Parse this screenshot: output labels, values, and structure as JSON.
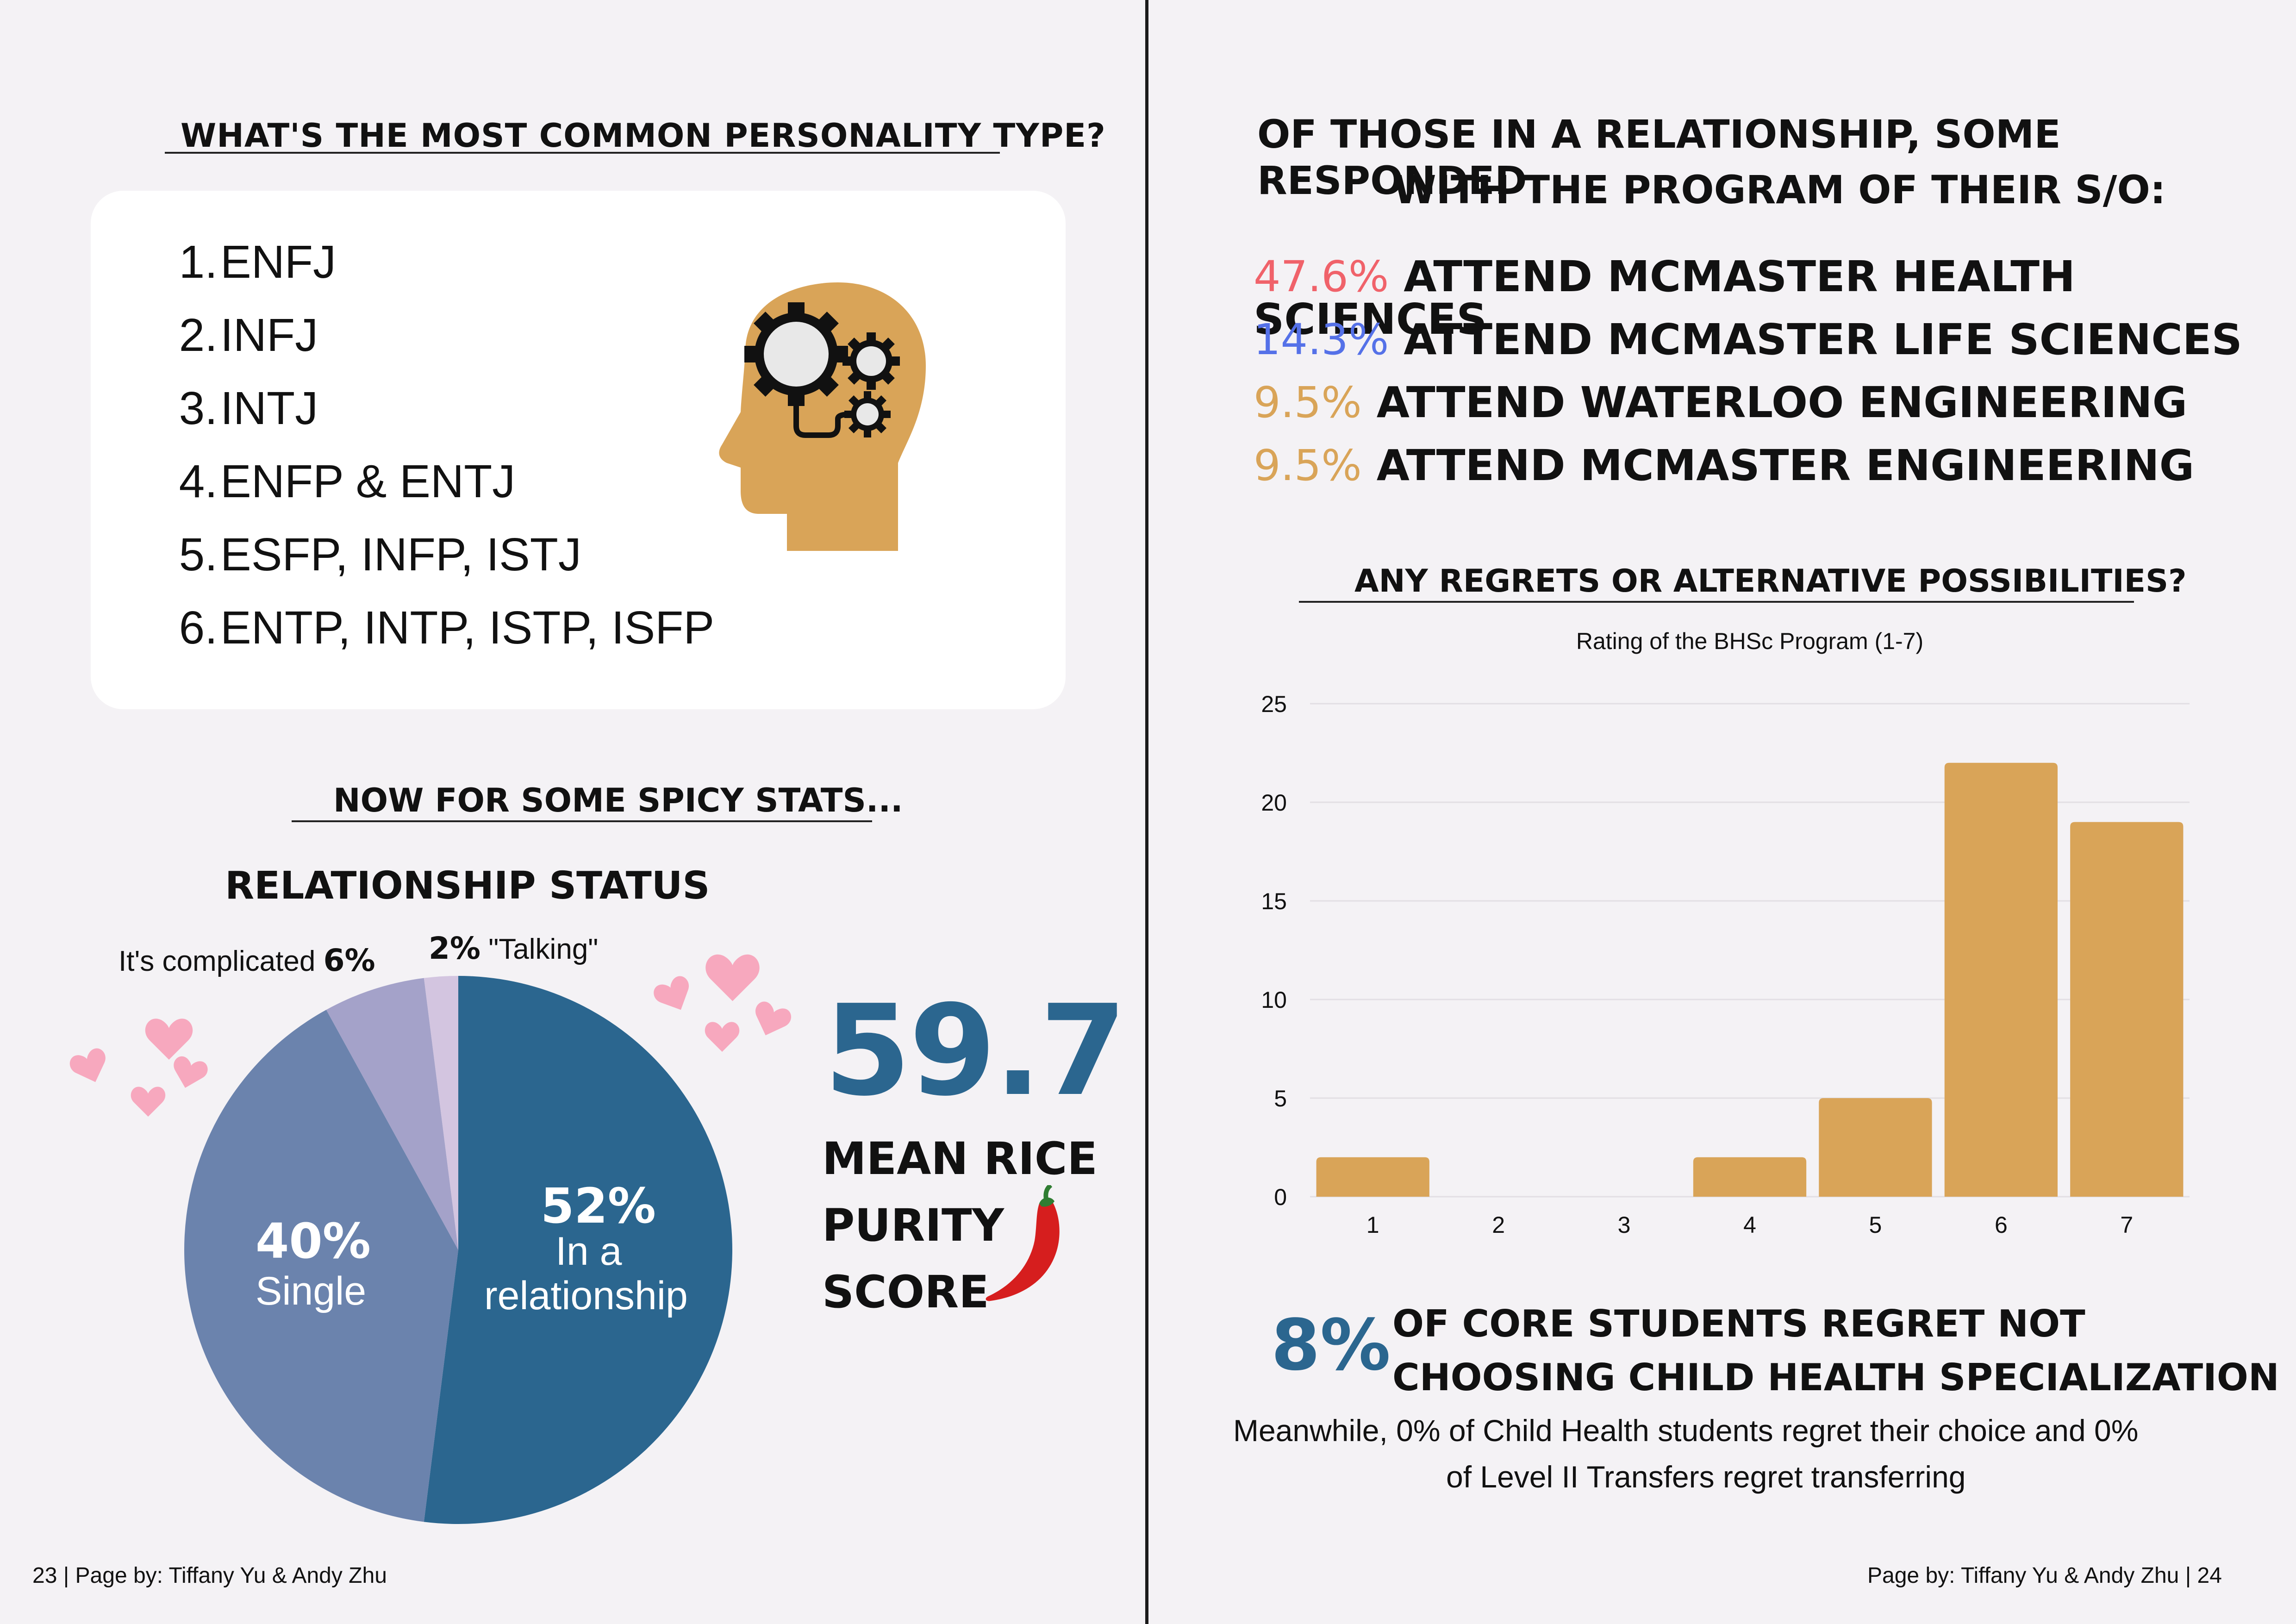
{
  "left_page": {
    "personality": {
      "heading": "What's the most common personality type?",
      "items": [
        {
          "num": "1.",
          "text": "ENFJ"
        },
        {
          "num": "2.",
          "text": "INFJ"
        },
        {
          "num": "3.",
          "text": "INTJ"
        },
        {
          "num": "4.",
          "text": "ENFP & ENTJ"
        },
        {
          "num": "5.",
          "text": "ESFP, INFP, ISTJ"
        },
        {
          "num": "6.",
          "text": "ENTP, INTP, ISTP, ISFP"
        }
      ],
      "icon": "head-gears-icon",
      "icon_color": "#d9a458"
    },
    "spicy": {
      "heading": "Now for some spicy stats...",
      "relationship": {
        "title": "Relationship Status",
        "chart_data": {
          "type": "pie",
          "slices": [
            {
              "label_pct": "52%",
              "label": "In a relationship",
              "value": 52,
              "color": "#2b668f"
            },
            {
              "label_pct": "40%",
              "label": "Single",
              "value": 40,
              "color": "#6b83ad"
            },
            {
              "label_pct": "6%",
              "label": "It's complicated",
              "value": 6,
              "color": "#a4a2c9"
            },
            {
              "label_pct": "2%",
              "label": "\"Talking\"",
              "value": 2,
              "color": "#d3c5e0"
            }
          ]
        },
        "label_single_pct": "40%",
        "label_single": "Single",
        "label_rel_pct": "52%",
        "label_rel_line1": "In a",
        "label_rel_line2": "relationship",
        "label_complicated": "It's complicated",
        "label_complicated_pct": "6%",
        "label_talking_pct": "2%",
        "label_talking": "\"Talking\""
      },
      "rice": {
        "value": "59.7",
        "line1": "Mean Rice",
        "line2": "Purity",
        "line3": "Score",
        "value_color": "#2b668f"
      }
    },
    "footer": "23 | Page by: Tiffany Yu & Andy Zhu"
  },
  "right_page": {
    "so_heading_line1": "Of those in a relationship, some responded",
    "so_heading_line2": "with the program of their S/O:",
    "so_items": [
      {
        "pct": "47.6%",
        "text": "attend McMaster Health Sciences",
        "color": "#f0626a"
      },
      {
        "pct": "14.3%",
        "text": "attend McMaster Life Sciences",
        "color": "#5571e8"
      },
      {
        "pct": "9.5%",
        "text": "attend Waterloo Engineering",
        "color": "#d9a458"
      },
      {
        "pct": "9.5%",
        "text": "attend McMaster Engineering",
        "color": "#d9a458"
      }
    ],
    "regrets_heading": "Any regrets or alternative possibilities?",
    "chart_data": {
      "type": "bar",
      "title": "Rating of the BHSc Program (1-7)",
      "categories": [
        "1",
        "2",
        "3",
        "4",
        "5",
        "6",
        "7"
      ],
      "values": [
        2,
        0,
        0,
        2,
        5,
        22,
        19
      ],
      "ylim": [
        0,
        25
      ],
      "yticks": [
        "0",
        "5",
        "10",
        "15",
        "20",
        "25"
      ],
      "grid": true,
      "bar_color": "#d9a458"
    },
    "regret": {
      "pct": "8%",
      "line1": "of core students regret not",
      "line2": "choosing Child Health specialization",
      "note_line1": "Meanwhile, 0% of Child Health students regret their choice and 0%",
      "note_line2": "of Level II Transfers regret transferring"
    },
    "footer": "Page by: Tiffany Yu & Andy Zhu | 24"
  }
}
